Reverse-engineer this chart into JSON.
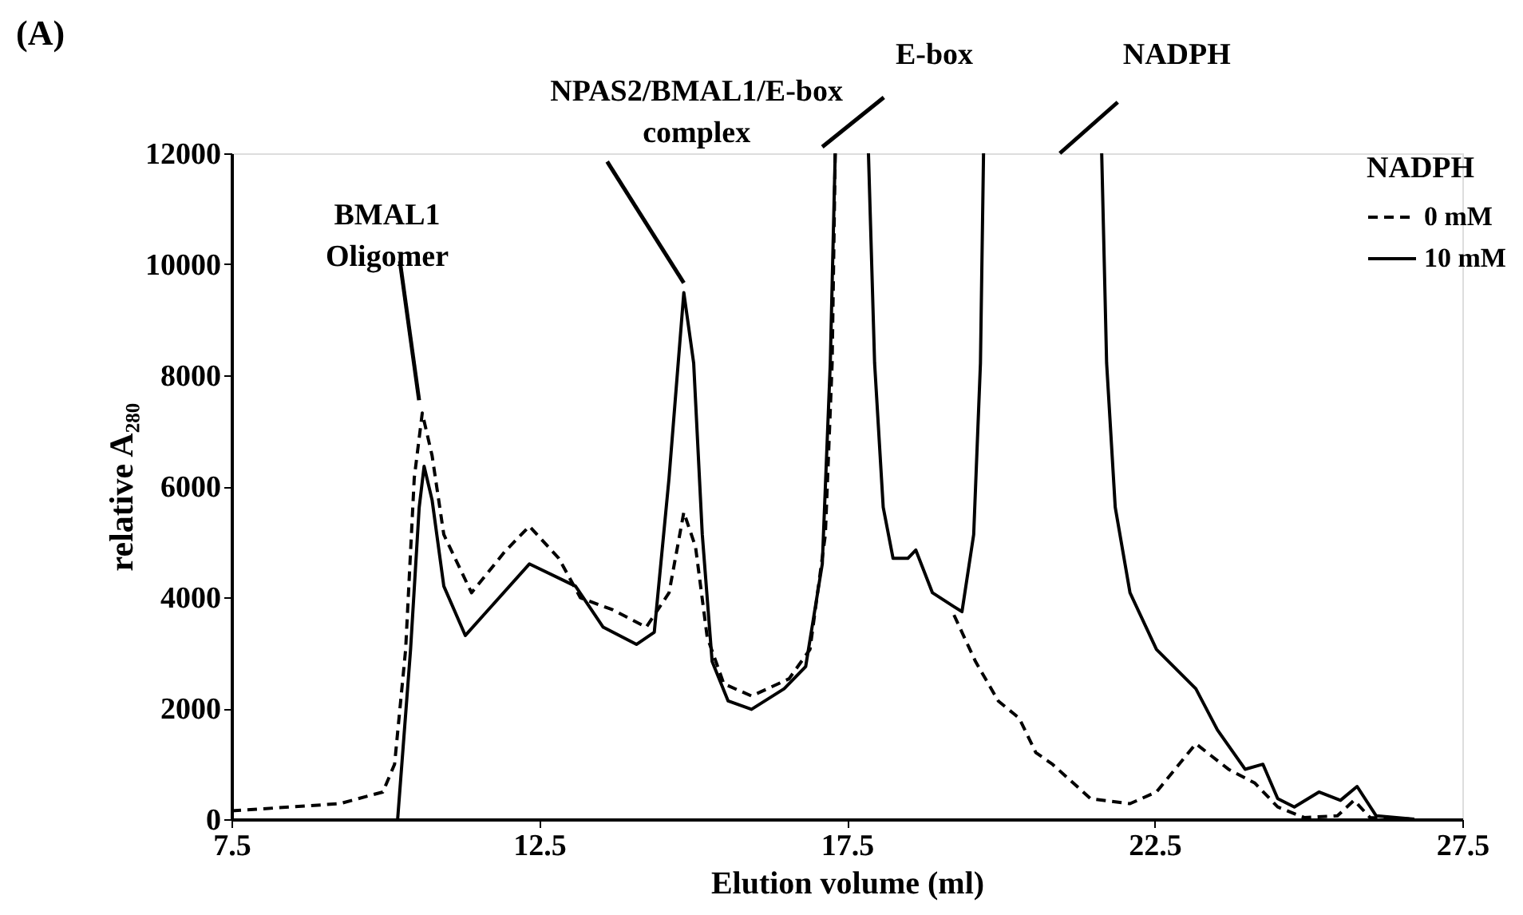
{
  "chart_data": {
    "type": "line",
    "xlabel": "Elution volume (ml)",
    "ylabel": "relative A₂₈₀",
    "legend_title": "NADPH",
    "xlim": [
      7.5,
      27.5
    ],
    "xticks": [
      7.5,
      12.5,
      17.5,
      22.5,
      27.5
    ],
    "ylim": [
      0,
      12000
    ],
    "yticks": [
      0,
      2000,
      4000,
      6000,
      8000,
      10000,
      12000
    ],
    "grid": false,
    "legend": "right",
    "marker": "none",
    "annotations": [
      "(A)",
      "E-box",
      "NADPH",
      {
        "text": "BMAL1 Oligomer",
        "x": 10.6,
        "y": 7320
      },
      {
        "text": "NPAS2/BMAL1/E-box complex",
        "x": 14.85,
        "y": 9490
      }
    ],
    "series": [
      {
        "name": "0 mM",
        "color": "#000000",
        "line_style": "dashed",
        "x": [
          7.5,
          9.26,
          9.96,
          10.15,
          10.33,
          10.47,
          10.6,
          10.76,
          10.95,
          11.4,
          11.94,
          12.34,
          12.82,
          13.17,
          13.7,
          14.24,
          14.61,
          14.85,
          15.04,
          15.23,
          15.5,
          15.95,
          16.56,
          16.9,
          17.15,
          17.26,
          17.31,
          18.5,
          19.24,
          19.59,
          19.96,
          20.3,
          20.57,
          20.84,
          21.46,
          22.1,
          22.53,
          23.17,
          23.7,
          24.13,
          24.5,
          24.93,
          25.47,
          25.74,
          26.0,
          26.7
        ],
        "values": [
          150,
          280,
          490,
          990,
          3060,
          6150,
          7320,
          6550,
          5130,
          4080,
          4820,
          5280,
          4700,
          3990,
          3770,
          3460,
          4080,
          5530,
          4910,
          3280,
          2440,
          2220,
          2530,
          3060,
          5130,
          8220,
          12000,
          null,
          3680,
          2840,
          2130,
          1820,
          1200,
          990,
          370,
          280,
          490,
          1360,
          900,
          650,
          220,
          30,
          60,
          340,
          30,
          0
        ]
      },
      {
        "name": "10 mM",
        "color": "#000000",
        "line_style": "solid",
        "x": [
          10.2,
          10.41,
          10.55,
          10.63,
          10.76,
          10.95,
          11.3,
          11.67,
          12.34,
          13.09,
          13.54,
          14.08,
          14.37,
          14.61,
          14.85,
          15.01,
          15.15,
          15.31,
          15.57,
          15.95,
          16.48,
          16.83,
          17.1,
          17.23,
          17.31,
          17.6,
          17.85,
          17.95,
          18.09,
          18.25,
          18.49,
          18.62,
          18.89,
          19.24,
          19.37,
          19.56,
          19.67,
          19.72,
          20.7,
          21.64,
          21.72,
          21.86,
          22.1,
          22.53,
          23.17,
          23.52,
          23.97,
          24.26,
          24.5,
          24.77,
          25.17,
          25.52,
          25.79,
          26.1,
          26.72
        ],
        "values": [
          0,
          3060,
          5620,
          6360,
          5750,
          4200,
          3310,
          3770,
          4600,
          4200,
          3460,
          3150,
          3370,
          6150,
          9490,
          8220,
          5130,
          2840,
          2130,
          1980,
          2350,
          2750,
          4600,
          8220,
          12000,
          null,
          12000,
          8220,
          5620,
          4700,
          4700,
          4850,
          4080,
          3830,
          3740,
          5130,
          8220,
          12000,
          null,
          12000,
          8220,
          5620,
          4080,
          3060,
          2350,
          1610,
          900,
          990,
          370,
          220,
          490,
          340,
          590,
          60,
          0
        ]
      }
    ]
  }
}
